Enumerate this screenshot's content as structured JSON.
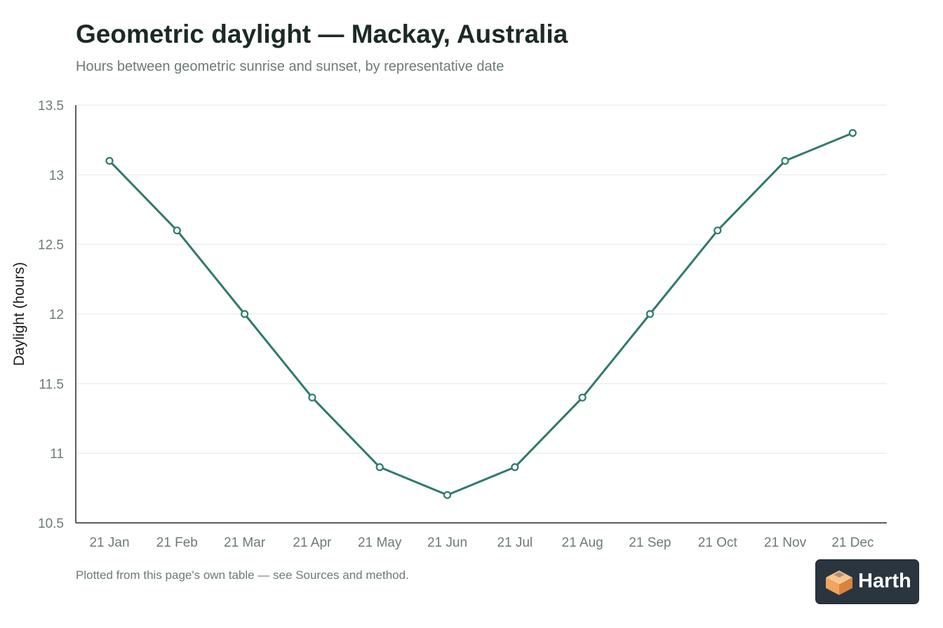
{
  "header": {
    "title": "Geometric daylight — Mackay, Australia",
    "subtitle": "Hours between geometric sunrise and sunset, by representative date"
  },
  "footer": {
    "note": "Plotted from this page's own table — see Sources and method."
  },
  "brand": {
    "name": "Harth",
    "logo_icon": "isometric-box-icon"
  },
  "colors": {
    "series": "#2e7a6e",
    "grid": "#e4e6e5",
    "axis": "#2a2a2a",
    "tick_text": "#6b7b75",
    "badge_bg": "#2b3540",
    "logo_light": "#f5b77a",
    "logo_dark": "#d9833f"
  },
  "chart_data": {
    "type": "line",
    "title": "Geometric daylight — Mackay, Australia",
    "subtitle": "Hours between geometric sunrise and sunset, by representative date",
    "xlabel": "",
    "ylabel": "Daylight (hours)",
    "categories": [
      "21 Jan",
      "21 Feb",
      "21 Mar",
      "21 Apr",
      "21 May",
      "21 Jun",
      "21 Jul",
      "21 Aug",
      "21 Sep",
      "21 Oct",
      "21 Nov",
      "21 Dec"
    ],
    "series": [
      {
        "values": [
          13.1,
          12.6,
          12.0,
          11.4,
          10.9,
          10.7,
          10.9,
          11.4,
          12.0,
          12.6,
          13.1,
          13.3
        ]
      }
    ],
    "ylim": [
      10.5,
      13.5
    ],
    "yticks": [
      10.5,
      11,
      11.5,
      12,
      12.5,
      13,
      13.5
    ],
    "ytick_labels": [
      "10.5",
      "11",
      "11.5",
      "12",
      "12.5",
      "13",
      "13.5"
    ],
    "grid": true,
    "legend": "none",
    "markers": "hollow-circle"
  }
}
